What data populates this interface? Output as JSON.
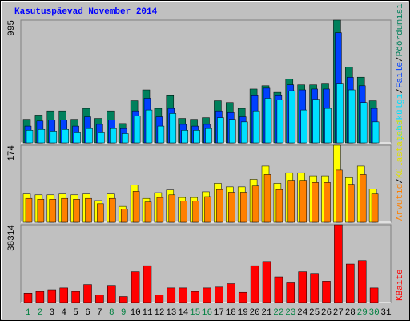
{
  "chart_data": [
    {
      "type": "bar",
      "title": "Kasutuspäevad November 2014",
      "categories": [
        "1",
        "2",
        "3",
        "4",
        "5",
        "6",
        "7",
        "8",
        "9",
        "10",
        "11",
        "12",
        "13",
        "14",
        "15",
        "16",
        "17",
        "18",
        "19",
        "20",
        "21",
        "22",
        "23",
        "24",
        "25",
        "26",
        "27",
        "28",
        "29",
        "30",
        "31"
      ],
      "category_colors": [
        "#008040",
        "#008040",
        "#000000",
        "#000000",
        "#000000",
        "#000000",
        "#000000",
        "#008040",
        "#008040",
        "#000000",
        "#000000",
        "#000000",
        "#000000",
        "#000000",
        "#008040",
        "#008040",
        "#000000",
        "#000000",
        "#000000",
        "#000000",
        "#000000",
        "#008040",
        "#008040",
        "#000000",
        "#000000",
        "#000000",
        "#000000",
        "#000000",
        "#008040",
        "#008040",
        "#000000"
      ],
      "legend_separator": "/",
      "ylim": [
        0,
        995
      ],
      "yticks": [
        995
      ],
      "series": [
        {
          "name": "Pöördumisi",
          "color": "#00805c",
          "values": [
            191,
            225,
            259,
            259,
            191,
            279,
            198,
            259,
            157,
            341,
            429,
            279,
            382,
            198,
            191,
            204,
            341,
            327,
            279,
            436,
            463,
            409,
            518,
            470,
            470,
            477,
            995,
            613,
            532,
            341,
            null
          ]
        },
        {
          "name": "Faile",
          "color": "#0040ff",
          "values": [
            136,
            177,
            184,
            184,
            136,
            211,
            150,
            184,
            116,
            259,
            361,
            211,
            279,
            150,
            136,
            150,
            259,
            245,
            211,
            382,
            443,
            382,
            470,
            429,
            436,
            436,
            893,
            531,
            463,
            279,
            null
          ]
        },
        {
          "name": "Lehekülgi",
          "color": "#00e0ff",
          "values": [
            102,
            109,
            95,
            109,
            82,
            116,
            82,
            116,
            75,
            218,
            266,
            136,
            238,
            102,
            102,
            116,
            204,
            191,
            170,
            259,
            361,
            348,
            422,
            266,
            354,
            279,
            477,
            429,
            327,
            170,
            null
          ]
        }
      ]
    },
    {
      "type": "bar",
      "legend_separator": "/",
      "ylim": [
        0,
        174
      ],
      "yticks": [
        174
      ],
      "series": [
        {
          "name": "Külastajaid",
          "color": "#ffff00",
          "values": [
            64,
            62,
            62,
            64,
            62,
            64,
            49,
            64,
            36,
            84,
            54,
            67,
            73,
            56,
            56,
            69,
            88,
            80,
            80,
            97,
            127,
            88,
            112,
            112,
            105,
            105,
            174,
            101,
            127,
            75,
            null
          ]
        },
        {
          "name": "Arvutid",
          "color": "#ff8000",
          "values": [
            54,
            52,
            52,
            54,
            52,
            54,
            42,
            54,
            30,
            70,
            46,
            56,
            62,
            48,
            48,
            58,
            74,
            68,
            68,
            82,
            108,
            74,
            95,
            95,
            90,
            90,
            118,
            86,
            108,
            64,
            null
          ]
        }
      ]
    },
    {
      "type": "bar",
      "ylim": [
        0,
        38314
      ],
      "yticks": [
        38314
      ],
      "series": [
        {
          "name": "KBaite",
          "color": "#ff0000",
          "values": [
            4631,
            5473,
            6315,
            7157,
            5473,
            8841,
            3789,
            8420,
            2947,
            15157,
            18104,
            3789,
            7157,
            7157,
            5473,
            7157,
            7578,
            9262,
            5052,
            18104,
            20209,
            12631,
            9683,
            15157,
            14315,
            10526,
            38314,
            18946,
            20630,
            7157,
            null
          ]
        }
      ]
    }
  ]
}
